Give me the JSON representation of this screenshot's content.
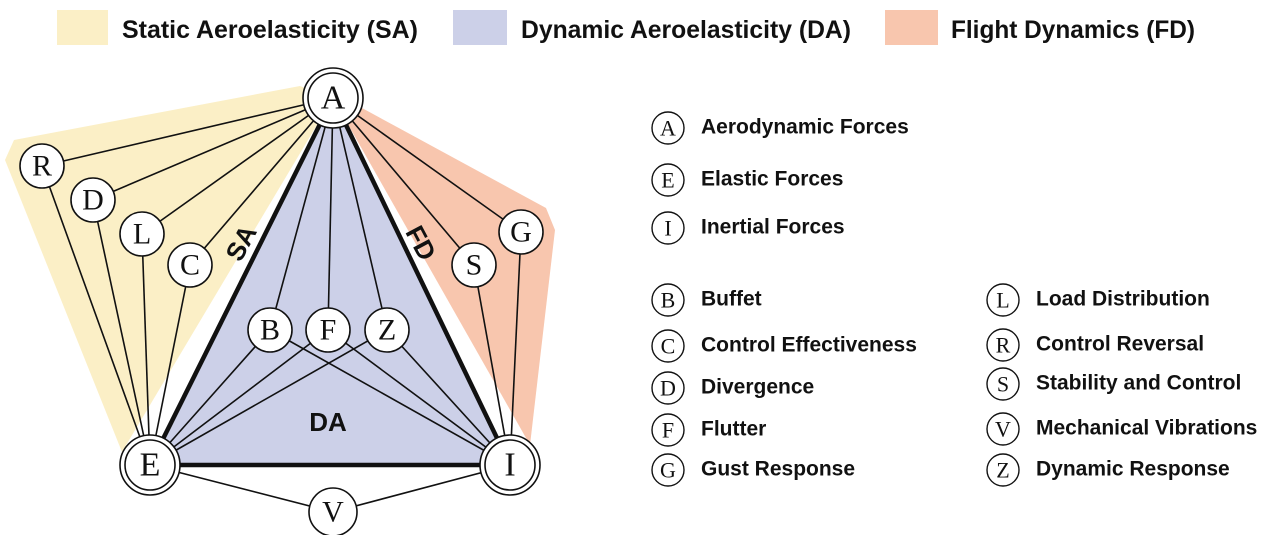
{
  "legend": [
    {
      "label": "Static Aeroelasticity (SA)"
    },
    {
      "label": "Dynamic Aeroelasticity (DA)"
    },
    {
      "label": "Flight Dynamics (FD)"
    }
  ],
  "region_labels": {
    "sa": "SA",
    "fd": "FD",
    "da": "DA"
  },
  "nodes": [
    {
      "label": "A"
    },
    {
      "label": "E"
    },
    {
      "label": "I"
    },
    {
      "label": "V"
    },
    {
      "label": "R"
    },
    {
      "label": "D"
    },
    {
      "label": "L"
    },
    {
      "label": "C"
    },
    {
      "label": "B"
    },
    {
      "label": "F"
    },
    {
      "label": "Z"
    },
    {
      "label": "S"
    },
    {
      "label": "G"
    }
  ],
  "key": [
    {
      "symbol": "A",
      "text": "Aerodynamic Forces"
    },
    {
      "symbol": "E",
      "text": "Elastic Forces"
    },
    {
      "symbol": "I",
      "text": "Inertial Forces"
    },
    {
      "symbol": "B",
      "text": "Buffet"
    },
    {
      "symbol": "C",
      "text": "Control Effectiveness"
    },
    {
      "symbol": "D",
      "text": "Divergence"
    },
    {
      "symbol": "F",
      "text": "Flutter"
    },
    {
      "symbol": "G",
      "text": "Gust Response"
    },
    {
      "symbol": "L",
      "text": "Load Distribution"
    },
    {
      "symbol": "R",
      "text": "Control Reversal"
    },
    {
      "symbol": "S",
      "text": "Stability and Control"
    },
    {
      "symbol": "V",
      "text": "Mechanical Vibrations"
    },
    {
      "symbol": "Z",
      "text": "Dynamic Response"
    }
  ]
}
